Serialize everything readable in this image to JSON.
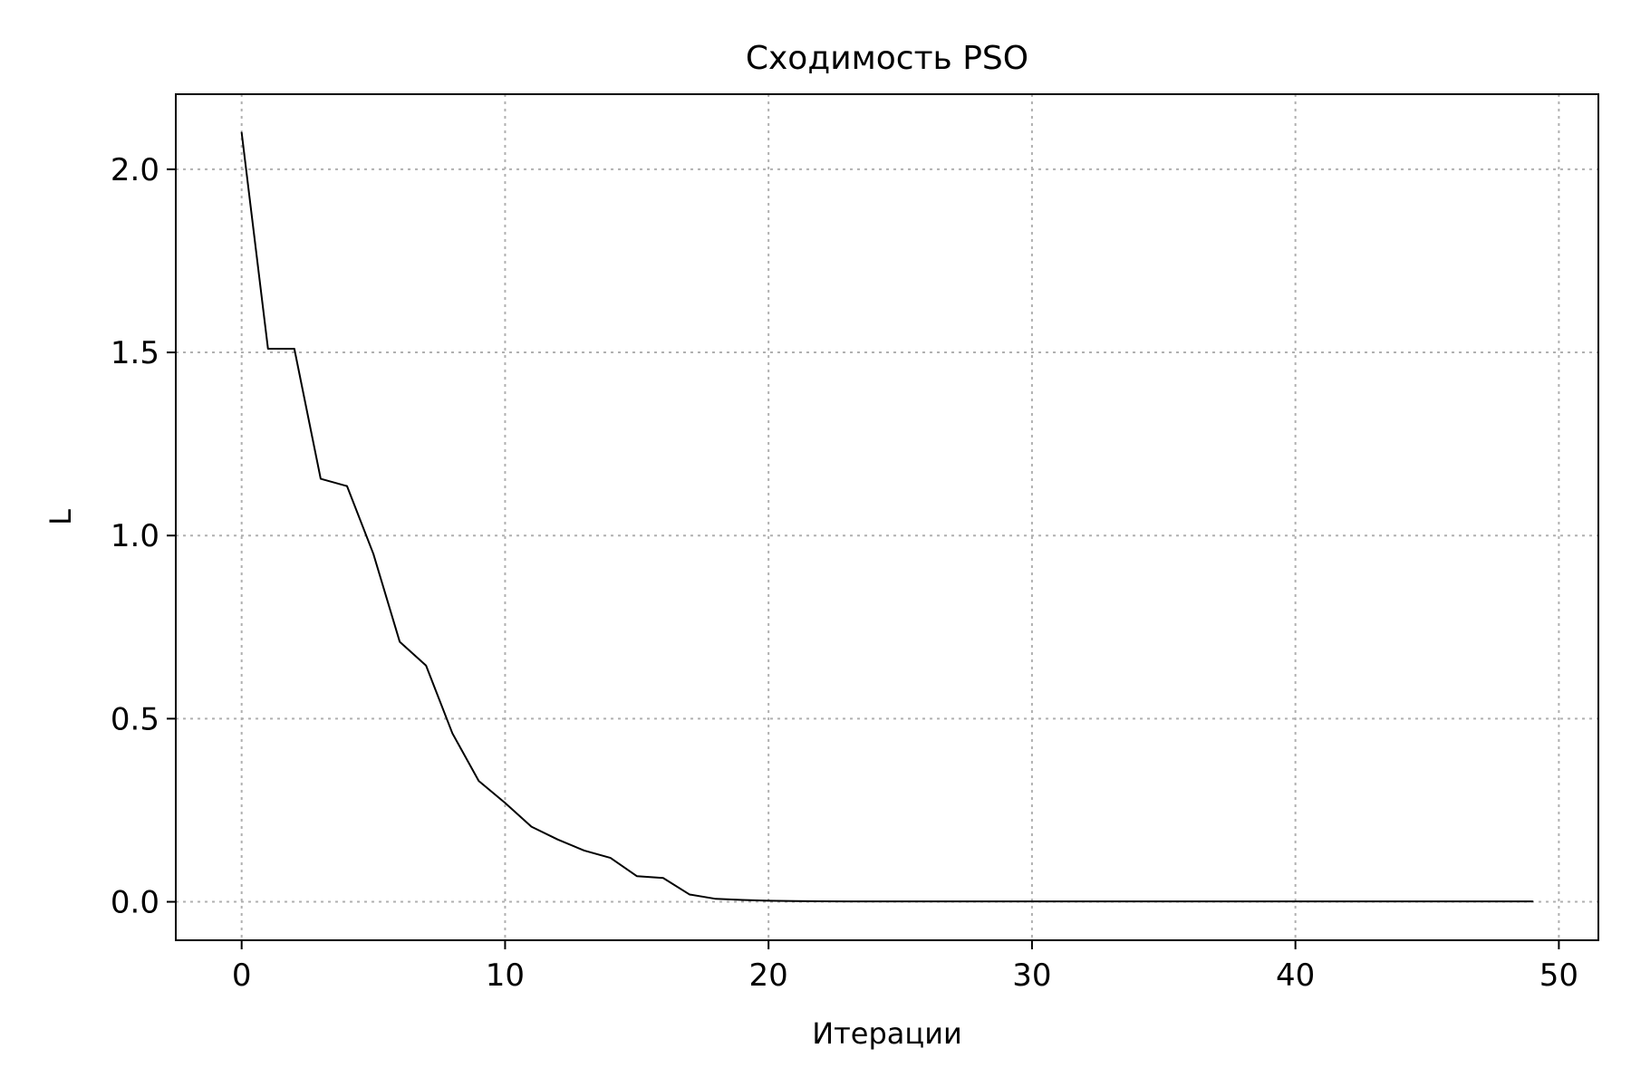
{
  "chart_data": {
    "type": "line",
    "title": "Сходимость PSO",
    "xlabel": "Итерации",
    "ylabel": "L",
    "xlim": [
      -2.5,
      51.5
    ],
    "ylim": [
      -0.105,
      2.205
    ],
    "xticks": [
      0,
      10,
      20,
      30,
      40,
      50
    ],
    "xtick_labels": [
      "0",
      "10",
      "20",
      "30",
      "40",
      "50"
    ],
    "yticks": [
      0.0,
      0.5,
      1.0,
      1.5,
      2.0
    ],
    "ytick_labels": [
      "0.0",
      "0.5",
      "1.0",
      "1.5",
      "2.0"
    ],
    "grid": true,
    "colors": {
      "line": "#000000",
      "grid": "#b0b0b0"
    },
    "series": [
      {
        "x": [
          0,
          1,
          2,
          3,
          4,
          5,
          6,
          7,
          8,
          9,
          10,
          11,
          12,
          13,
          14,
          15,
          16,
          17,
          18,
          19,
          20,
          21,
          22,
          23,
          24,
          25,
          26,
          27,
          28,
          29,
          30,
          31,
          32,
          33,
          34,
          35,
          36,
          37,
          38,
          39,
          40,
          41,
          42,
          43,
          44,
          45,
          46,
          47,
          48,
          49
        ],
        "values": [
          2.1,
          1.51,
          1.51,
          1.155,
          1.135,
          0.95,
          0.71,
          0.645,
          0.46,
          0.33,
          0.27,
          0.205,
          0.17,
          0.14,
          0.12,
          0.07,
          0.065,
          0.02,
          0.008,
          0.005,
          0.003,
          0.002,
          0.0015,
          0.001,
          0.001,
          0.001,
          0.001,
          0.001,
          0.001,
          0.001,
          0.001,
          0.001,
          0.001,
          0.001,
          0.001,
          0.001,
          0.001,
          0.001,
          0.001,
          0.001,
          0.001,
          0.001,
          0.001,
          0.001,
          0.001,
          0.001,
          0.001,
          0.001,
          0.001,
          0.001
        ]
      }
    ]
  }
}
